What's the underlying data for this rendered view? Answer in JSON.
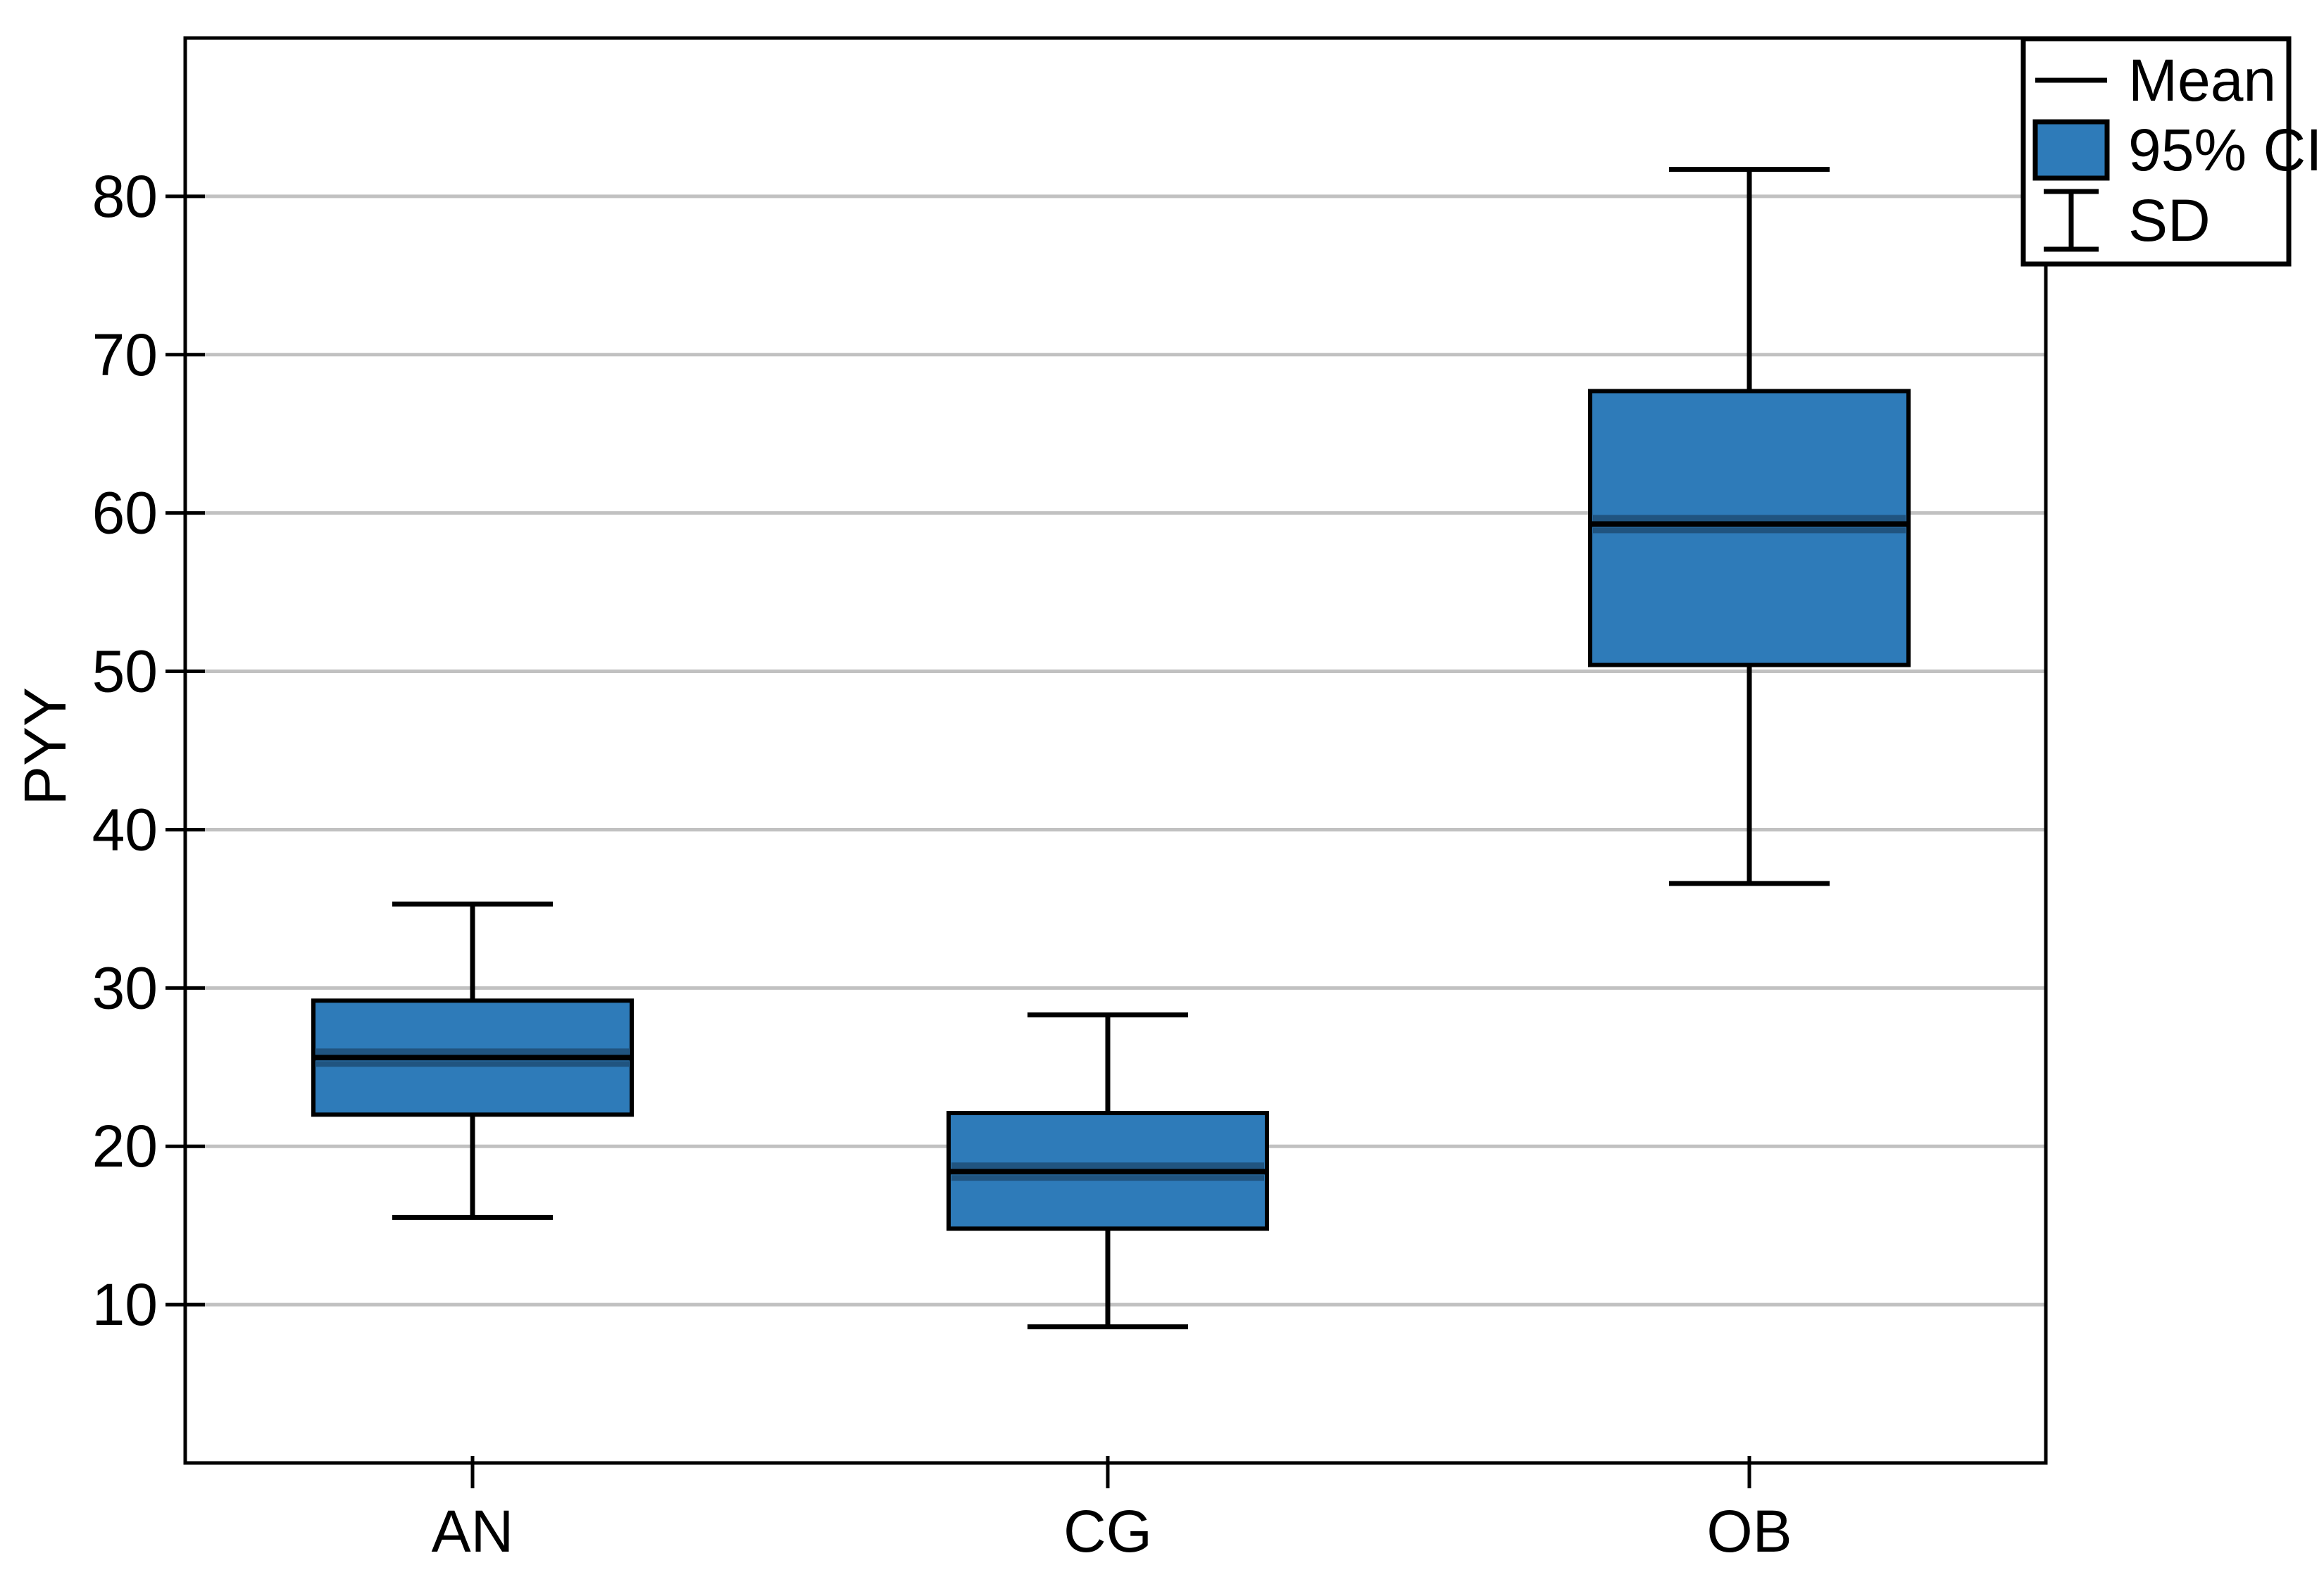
{
  "chart_data": {
    "type": "boxplot",
    "title": "",
    "ylabel": "PYY",
    "xlabel": "",
    "categories": [
      "AN",
      "CG",
      "OB"
    ],
    "series": [
      {
        "category": "AN",
        "mean": 25.6,
        "ci_low": 22.0,
        "ci_high": 29.2,
        "sd_low": 15.5,
        "sd_high": 35.3
      },
      {
        "category": "CG",
        "mean": 18.4,
        "ci_low": 14.8,
        "ci_high": 22.1,
        "sd_low": 8.6,
        "sd_high": 28.3
      },
      {
        "category": "OB",
        "mean": 59.3,
        "ci_low": 50.4,
        "ci_high": 67.7,
        "sd_low": 36.6,
        "sd_high": 81.7
      }
    ],
    "ylim": [
      0,
      90
    ],
    "yticks": [
      10,
      20,
      30,
      40,
      50,
      60,
      70,
      80
    ],
    "grid": true,
    "legend": {
      "position": "top-right",
      "entries": [
        {
          "symbol": "line",
          "label": "Mean"
        },
        {
          "symbol": "box",
          "label": "95% CI"
        },
        {
          "symbol": "errorbar",
          "label": "SD"
        }
      ]
    }
  },
  "colors": {
    "box_fill": "#2e7bb9",
    "box_fill_shadow": "#205480",
    "stroke": "#000000",
    "gridline": "#c1c1c1",
    "background": "#ffffff",
    "text": "#000000"
  }
}
